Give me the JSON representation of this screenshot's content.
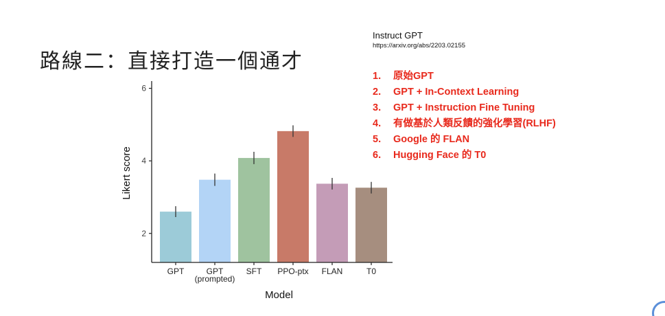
{
  "slide": {
    "title": "路線二：直接打造一個通才"
  },
  "reference": {
    "title": "Instruct GPT",
    "url": "https://arxiv.org/abs/2203.02155"
  },
  "methods": [
    {
      "num": "1.",
      "text": "原始GPT"
    },
    {
      "num": "2.",
      "text": "GPT + In-Context Learning"
    },
    {
      "num": "3.",
      "text": "GPT + Instruction Fine Tuning"
    },
    {
      "num": "4.",
      "text": "有做基於人類反饋的強化學習(RLHF)"
    },
    {
      "num": "5.",
      "text": "Google 的 FLAN"
    },
    {
      "num": "6.",
      "text": "Hugging Face 的 T0"
    }
  ],
  "colors": {
    "method_text": "#e8291c",
    "badge": "#5b8fd9"
  },
  "chart_data": {
    "type": "bar",
    "title": "",
    "xlabel": "Model",
    "ylabel": "Likert score",
    "ylim": [
      1.2,
      6.2
    ],
    "yticks": [
      2,
      4,
      6
    ],
    "grid": false,
    "categories": [
      "GPT",
      "GPT\n(prompted)",
      "SFT",
      "PPO-ptx",
      "FLAN",
      "T0"
    ],
    "values": [
      2.6,
      3.48,
      4.08,
      4.82,
      3.37,
      3.26
    ],
    "error": [
      0.15,
      0.17,
      0.17,
      0.16,
      0.16,
      0.16
    ],
    "colors": [
      "#9ccbd8",
      "#b3d4f6",
      "#9fc39f",
      "#c87a68",
      "#c49cb7",
      "#a68e7f"
    ]
  }
}
